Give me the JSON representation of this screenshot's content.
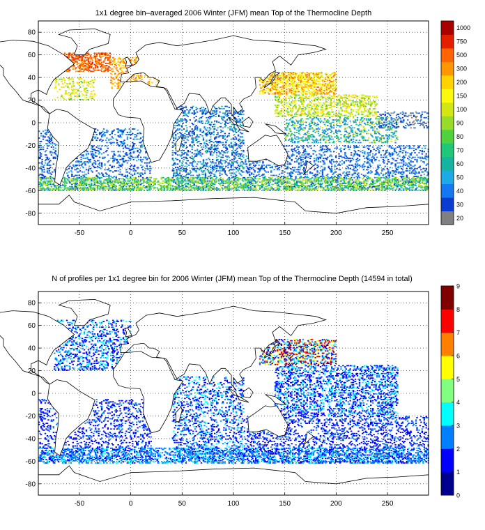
{
  "chart_data": [
    {
      "type": "heatmap",
      "title": "1x1 degree bin–averaged 2006 Winter (JFM) mean Top of the Thermocline Depth",
      "xticks": [
        -50,
        0,
        50,
        100,
        150,
        200,
        250
      ],
      "yticks": [
        80,
        60,
        40,
        20,
        0,
        -20,
        -40,
        -60,
        -80
      ],
      "xlim": [
        -90,
        290
      ],
      "ylim": [
        -90,
        90
      ],
      "grid": true,
      "colorbar": {
        "scale": "categorical",
        "labels": [
          "20",
          "30",
          "40",
          "50",
          "60",
          "70",
          "80",
          "90",
          "100",
          "150",
          "200",
          "300",
          "500",
          "750",
          "1000"
        ],
        "colors": [
          "#808080",
          "#0a3cd2",
          "#1478f0",
          "#1eaae6",
          "#14b4a0",
          "#1ec878",
          "#50d23c",
          "#96dc28",
          "#d2e614",
          "#fafa0a",
          "#ffd200",
          "#ff9600",
          "#ff6400",
          "#e61e00",
          "#aa0000"
        ],
        "mask_labels": true
      },
      "regions": [
        {
          "lon": [
            -65,
            -20
          ],
          "lat": [
            45,
            62
          ],
          "density": 0.45,
          "classes": [
            11,
            12,
            12,
            13
          ]
        },
        {
          "lon": [
            -20,
            10
          ],
          "lat": [
            30,
            58
          ],
          "density": 0.25,
          "classes": [
            10,
            11,
            12
          ]
        },
        {
          "lon": [
            -75,
            -35
          ],
          "lat": [
            20,
            40
          ],
          "density": 0.2,
          "classes": [
            6,
            8,
            9,
            10
          ]
        },
        {
          "lon": [
            0,
            35
          ],
          "lat": [
            30,
            45
          ],
          "density": 0.12,
          "classes": [
            10,
            11
          ]
        },
        {
          "lon": [
            125,
            200
          ],
          "lat": [
            25,
            45
          ],
          "density": 0.45,
          "classes": [
            8,
            9,
            9,
            10,
            11,
            12
          ]
        },
        {
          "lon": [
            140,
            240
          ],
          "lat": [
            5,
            25
          ],
          "density": 0.3,
          "classes": [
            6,
            7,
            8,
            9,
            10
          ]
        },
        {
          "lon": [
            150,
            260
          ],
          "lat": [
            -18,
            5
          ],
          "density": 0.25,
          "classes": [
            2,
            3,
            4,
            5,
            8
          ]
        },
        {
          "lon": [
            -90,
            20
          ],
          "lat": [
            -60,
            -5
          ],
          "density": 0.18,
          "classes": [
            1,
            1,
            2,
            3
          ]
        },
        {
          "lon": [
            40,
            110
          ],
          "lat": [
            -60,
            15
          ],
          "density": 0.22,
          "classes": [
            1,
            1,
            2,
            3,
            4
          ]
        },
        {
          "lon": [
            110,
            290
          ],
          "lat": [
            -60,
            -20
          ],
          "density": 0.2,
          "classes": [
            1,
            1,
            2,
            2,
            3
          ]
        },
        {
          "lon": [
            -90,
            290
          ],
          "lat": [
            -60,
            -48
          ],
          "density": 0.35,
          "classes": [
            4,
            5,
            6,
            7,
            8
          ]
        },
        {
          "lon": [
            240,
            290
          ],
          "lat": [
            -5,
            10
          ],
          "density": 0.2,
          "classes": [
            0,
            1,
            2
          ]
        }
      ]
    },
    {
      "type": "heatmap",
      "title": "N of profiles per 1x1 degree bin for 2006 Winter (JFM) mean Top of the Thermocline Depth  (14594 in total)",
      "xticks": [
        -50,
        0,
        50,
        100,
        150,
        200,
        250
      ],
      "yticks": [
        80,
        60,
        40,
        20,
        0,
        -20,
        -40,
        -60,
        -80
      ],
      "xlim": [
        -90,
        290
      ],
      "ylim": [
        -90,
        90
      ],
      "grid": true,
      "colorbar": {
        "scale": "linear",
        "min": 0,
        "max": 9,
        "ticks": [
          "0",
          "1",
          "2",
          "3",
          "4",
          "5",
          "6",
          "7",
          "8",
          "9"
        ],
        "colors": [
          "#00008f",
          "#0000ff",
          "#0080ff",
          "#00ffff",
          "#80ff80",
          "#ffff00",
          "#ff8000",
          "#ff0000",
          "#800000"
        ]
      },
      "regions": [
        {
          "lon": [
            -75,
            0
          ],
          "lat": [
            20,
            65
          ],
          "density": 0.22,
          "classes": [
            1,
            1,
            2,
            3
          ]
        },
        {
          "lon": [
            125,
            200
          ],
          "lat": [
            25,
            48
          ],
          "density": 0.35,
          "classes": [
            1,
            2,
            3,
            5,
            7,
            8
          ]
        },
        {
          "lon": [
            140,
            260
          ],
          "lat": [
            -20,
            25
          ],
          "density": 0.28,
          "classes": [
            1,
            1,
            2,
            3
          ]
        },
        {
          "lon": [
            -90,
            20
          ],
          "lat": [
            -60,
            -5
          ],
          "density": 0.18,
          "classes": [
            1,
            1,
            2
          ]
        },
        {
          "lon": [
            40,
            110
          ],
          "lat": [
            -60,
            15
          ],
          "density": 0.2,
          "classes": [
            1,
            1,
            2,
            3
          ]
        },
        {
          "lon": [
            110,
            290
          ],
          "lat": [
            -62,
            -20
          ],
          "density": 0.2,
          "classes": [
            1,
            1,
            2
          ]
        },
        {
          "lon": [
            -90,
            290
          ],
          "lat": [
            -62,
            -48
          ],
          "density": 0.3,
          "classes": [
            1,
            2,
            2,
            3
          ]
        }
      ]
    }
  ]
}
